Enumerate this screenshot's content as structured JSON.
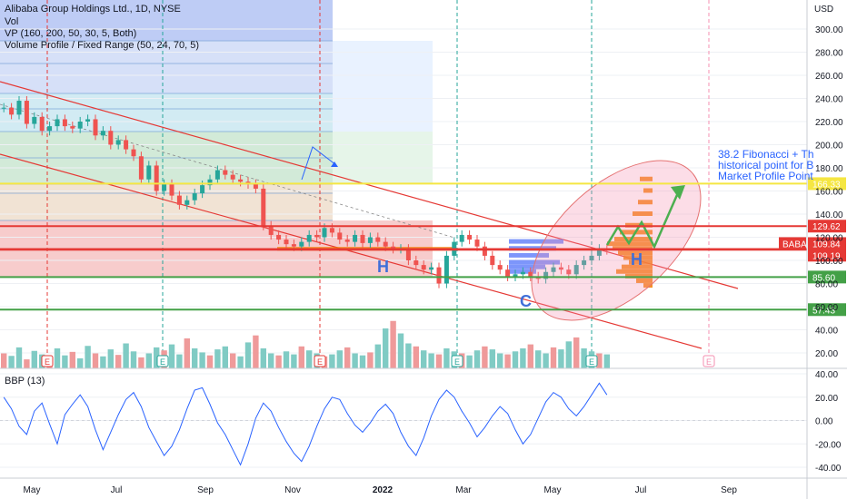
{
  "legend": {
    "line1": "Alibaba Group Holdings Ltd., 1D, NYSE",
    "line2": "Vol",
    "line3": "VP (160, 200, 50, 30, 5, Both)",
    "line4": "Volume Profile / Fixed Range (50, 24, 70, 5)"
  },
  "colors": {
    "up": "#26a69a",
    "down": "#ef5350",
    "channel": "#e53935",
    "fib_yellow": "#f5e642",
    "support_green": "#43a047",
    "projection": "#4caf50",
    "ellipse": "#f48fb1"
  },
  "annotation": {
    "text1": "38.2 Fibonacci + Th",
    "text2": "historical point for B",
    "text3": "Market Profile Point"
  },
  "pattern_labels": {
    "h1": "H",
    "h2": "H",
    "c": "C"
  },
  "earnings_marker": "E",
  "chart_data": {
    "type": "candlestick",
    "title": "Alibaba Group Holdings Ltd., 1D, NYSE",
    "currency": "USD",
    "x_ticks": [
      "May",
      "Jul",
      "Sep",
      "Nov",
      "2022",
      "Mar",
      "May",
      "Jul",
      "Sep"
    ],
    "y_ticks": [
      300,
      280,
      260,
      240,
      220,
      200,
      180,
      160,
      140,
      120,
      100,
      80,
      60,
      40,
      20
    ],
    "y_range": [
      10,
      308
    ],
    "price_levels": [
      {
        "value": 166.33,
        "label": "166.33",
        "color": "#f5e642"
      },
      {
        "value": 129.62,
        "label": "129.62",
        "color": "#e53935"
      },
      {
        "value": 109.84,
        "label": "109.84",
        "color": "#e53935",
        "name": "BABA"
      },
      {
        "value": 109.19,
        "label": "109.19",
        "color": "#e53935"
      },
      {
        "value": 85.6,
        "label": "85.60",
        "color": "#43a047"
      },
      {
        "value": 57.43,
        "label": "57.43",
        "color": "#43a047"
      }
    ],
    "price_path": [
      232,
      226,
      238,
      218,
      224,
      212,
      216,
      222,
      216,
      214,
      220,
      222,
      208,
      212,
      200,
      204,
      196,
      190,
      170,
      182,
      160,
      166,
      156,
      148,
      152,
      158,
      165,
      170,
      178,
      174,
      170,
      168,
      166,
      162,
      130,
      122,
      118,
      114,
      112,
      116,
      122,
      120,
      128,
      124,
      118,
      116,
      122,
      115,
      120,
      116,
      112,
      110,
      110,
      100,
      96,
      92,
      94,
      80,
      104,
      116,
      122,
      118,
      112,
      104,
      96,
      92,
      86,
      88,
      90,
      86,
      84,
      90,
      94,
      92,
      88,
      96,
      100,
      104,
      110,
      109
    ],
    "bbp": {
      "title": "BBP (13)",
      "y_ticks": [
        40,
        20,
        0,
        -20,
        -40
      ],
      "y_range": [
        -48,
        45
      ],
      "values": [
        20,
        10,
        -5,
        -12,
        8,
        15,
        -3,
        -20,
        5,
        14,
        22,
        12,
        -8,
        -25,
        -10,
        5,
        18,
        24,
        12,
        -6,
        -18,
        -30,
        -22,
        -8,
        10,
        26,
        28,
        14,
        -2,
        -12,
        -25,
        -38,
        -20,
        2,
        15,
        8,
        -6,
        -18,
        -28,
        -35,
        -22,
        -5,
        10,
        20,
        18,
        6,
        -4,
        -10,
        -2,
        8,
        14,
        6,
        -10,
        -22,
        -30,
        -15,
        4,
        18,
        26,
        20,
        8,
        -2,
        -14,
        -6,
        4,
        12,
        6,
        -8,
        -20,
        -12,
        2,
        16,
        24,
        20,
        10,
        4,
        12,
        22,
        32,
        22
      ]
    },
    "volume_max": 100,
    "volume": [
      30,
      25,
      42,
      18,
      35,
      28,
      22,
      40,
      26,
      33,
      20,
      45,
      30,
      24,
      38,
      27,
      50,
      34,
      22,
      30,
      42,
      36,
      48,
      28,
      60,
      40,
      32,
      26,
      38,
      44,
      30,
      24,
      52,
      66,
      40,
      30,
      26,
      34,
      28,
      44,
      36,
      30,
      24,
      28,
      36,
      42,
      30,
      26,
      32,
      48,
      80,
      95,
      70,
      50,
      44,
      36,
      30,
      28,
      40,
      34,
      30,
      26,
      36,
      44,
      38,
      30,
      28,
      34,
      40,
      48,
      36,
      30,
      42,
      38,
      54,
      62,
      40,
      34,
      30,
      28
    ]
  }
}
